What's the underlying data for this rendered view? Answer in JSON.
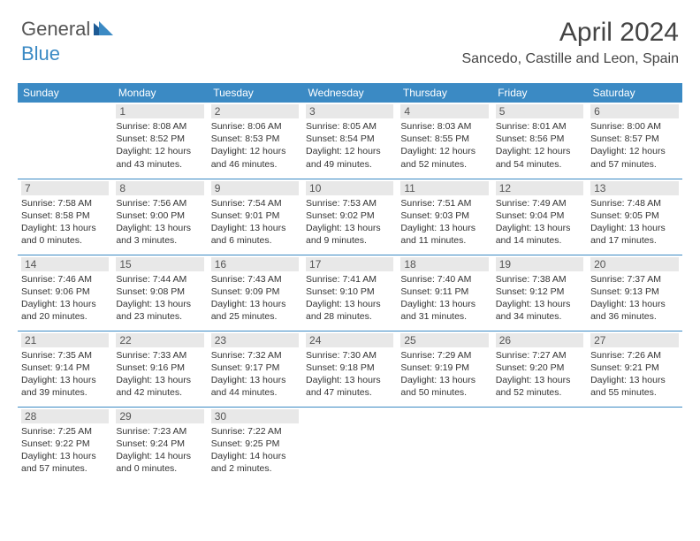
{
  "logo": {
    "text1": "General",
    "text2": "Blue"
  },
  "title": "April 2024",
  "location": "Sancedo, Castille and Leon, Spain",
  "colors": {
    "header_bg": "#3b8ac4",
    "header_text": "#ffffff",
    "daynum_bg": "#e8e8e8",
    "text": "#333333",
    "border": "#3b8ac4"
  },
  "days_of_week": [
    "Sunday",
    "Monday",
    "Tuesday",
    "Wednesday",
    "Thursday",
    "Friday",
    "Saturday"
  ],
  "weeks": [
    [
      null,
      {
        "d": "1",
        "sr": "8:08 AM",
        "ss": "8:52 PM",
        "dl": "12 hours and 43 minutes."
      },
      {
        "d": "2",
        "sr": "8:06 AM",
        "ss": "8:53 PM",
        "dl": "12 hours and 46 minutes."
      },
      {
        "d": "3",
        "sr": "8:05 AM",
        "ss": "8:54 PM",
        "dl": "12 hours and 49 minutes."
      },
      {
        "d": "4",
        "sr": "8:03 AM",
        "ss": "8:55 PM",
        "dl": "12 hours and 52 minutes."
      },
      {
        "d": "5",
        "sr": "8:01 AM",
        "ss": "8:56 PM",
        "dl": "12 hours and 54 minutes."
      },
      {
        "d": "6",
        "sr": "8:00 AM",
        "ss": "8:57 PM",
        "dl": "12 hours and 57 minutes."
      }
    ],
    [
      {
        "d": "7",
        "sr": "7:58 AM",
        "ss": "8:58 PM",
        "dl": "13 hours and 0 minutes."
      },
      {
        "d": "8",
        "sr": "7:56 AM",
        "ss": "9:00 PM",
        "dl": "13 hours and 3 minutes."
      },
      {
        "d": "9",
        "sr": "7:54 AM",
        "ss": "9:01 PM",
        "dl": "13 hours and 6 minutes."
      },
      {
        "d": "10",
        "sr": "7:53 AM",
        "ss": "9:02 PM",
        "dl": "13 hours and 9 minutes."
      },
      {
        "d": "11",
        "sr": "7:51 AM",
        "ss": "9:03 PM",
        "dl": "13 hours and 11 minutes."
      },
      {
        "d": "12",
        "sr": "7:49 AM",
        "ss": "9:04 PM",
        "dl": "13 hours and 14 minutes."
      },
      {
        "d": "13",
        "sr": "7:48 AM",
        "ss": "9:05 PM",
        "dl": "13 hours and 17 minutes."
      }
    ],
    [
      {
        "d": "14",
        "sr": "7:46 AM",
        "ss": "9:06 PM",
        "dl": "13 hours and 20 minutes."
      },
      {
        "d": "15",
        "sr": "7:44 AM",
        "ss": "9:08 PM",
        "dl": "13 hours and 23 minutes."
      },
      {
        "d": "16",
        "sr": "7:43 AM",
        "ss": "9:09 PM",
        "dl": "13 hours and 25 minutes."
      },
      {
        "d": "17",
        "sr": "7:41 AM",
        "ss": "9:10 PM",
        "dl": "13 hours and 28 minutes."
      },
      {
        "d": "18",
        "sr": "7:40 AM",
        "ss": "9:11 PM",
        "dl": "13 hours and 31 minutes."
      },
      {
        "d": "19",
        "sr": "7:38 AM",
        "ss": "9:12 PM",
        "dl": "13 hours and 34 minutes."
      },
      {
        "d": "20",
        "sr": "7:37 AM",
        "ss": "9:13 PM",
        "dl": "13 hours and 36 minutes."
      }
    ],
    [
      {
        "d": "21",
        "sr": "7:35 AM",
        "ss": "9:14 PM",
        "dl": "13 hours and 39 minutes."
      },
      {
        "d": "22",
        "sr": "7:33 AM",
        "ss": "9:16 PM",
        "dl": "13 hours and 42 minutes."
      },
      {
        "d": "23",
        "sr": "7:32 AM",
        "ss": "9:17 PM",
        "dl": "13 hours and 44 minutes."
      },
      {
        "d": "24",
        "sr": "7:30 AM",
        "ss": "9:18 PM",
        "dl": "13 hours and 47 minutes."
      },
      {
        "d": "25",
        "sr": "7:29 AM",
        "ss": "9:19 PM",
        "dl": "13 hours and 50 minutes."
      },
      {
        "d": "26",
        "sr": "7:27 AM",
        "ss": "9:20 PM",
        "dl": "13 hours and 52 minutes."
      },
      {
        "d": "27",
        "sr": "7:26 AM",
        "ss": "9:21 PM",
        "dl": "13 hours and 55 minutes."
      }
    ],
    [
      {
        "d": "28",
        "sr": "7:25 AM",
        "ss": "9:22 PM",
        "dl": "13 hours and 57 minutes."
      },
      {
        "d": "29",
        "sr": "7:23 AM",
        "ss": "9:24 PM",
        "dl": "14 hours and 0 minutes."
      },
      {
        "d": "30",
        "sr": "7:22 AM",
        "ss": "9:25 PM",
        "dl": "14 hours and 2 minutes."
      },
      null,
      null,
      null,
      null
    ]
  ],
  "labels": {
    "sunrise": "Sunrise:",
    "sunset": "Sunset:",
    "daylight": "Daylight:"
  }
}
